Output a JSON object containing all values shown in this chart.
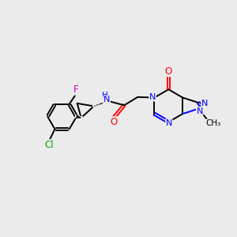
{
  "background_color": "#ebebeb",
  "bond_color": "#000000",
  "n_color": "#0000ff",
  "o_color": "#ff0000",
  "f_color": "#cc00cc",
  "cl_color": "#00aa00",
  "figsize": [
    3.0,
    3.0
  ],
  "dpi": 100,
  "xlim": [
    0,
    10
  ],
  "ylim": [
    0,
    10
  ]
}
